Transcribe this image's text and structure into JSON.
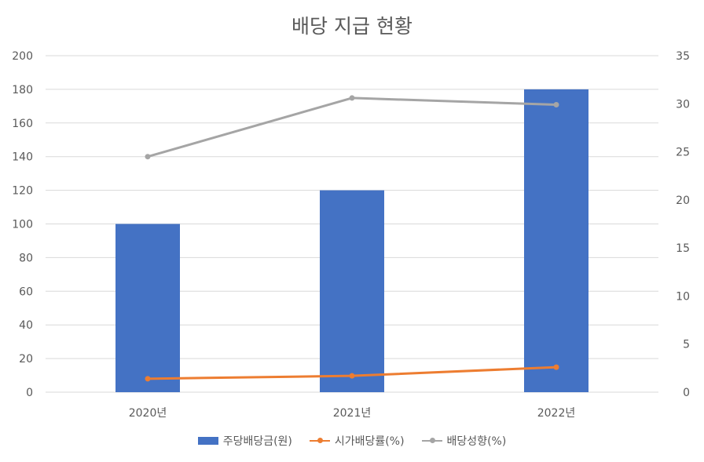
{
  "chart_data": {
    "type": "bar",
    "title": "배당 지급 현황",
    "categories": [
      "2020년",
      "2021년",
      "2022년"
    ],
    "series": [
      {
        "name": "주당배당금(원)",
        "type": "bar",
        "axis": "left",
        "color": "#4472c4",
        "values": [
          100,
          120,
          180
        ]
      },
      {
        "name": "시가배당률(%)",
        "type": "line",
        "axis": "right",
        "color": "#ed7d31",
        "values": [
          1.4,
          1.7,
          2.6
        ]
      },
      {
        "name": "배당성향(%)",
        "type": "line",
        "axis": "right",
        "color": "#a5a5a5",
        "values": [
          24.5,
          30.6,
          29.9
        ]
      }
    ],
    "y_left": {
      "min": 0,
      "max": 200,
      "step": 20,
      "ticks": [
        "0",
        "20",
        "40",
        "60",
        "80",
        "100",
        "120",
        "140",
        "160",
        "180",
        "200"
      ]
    },
    "y_right": {
      "min": 0,
      "max": 35,
      "step": 5,
      "ticks": [
        "0",
        "5",
        "10",
        "15",
        "20",
        "25",
        "30",
        "35"
      ]
    },
    "grid": true,
    "legend_position": "bottom"
  }
}
